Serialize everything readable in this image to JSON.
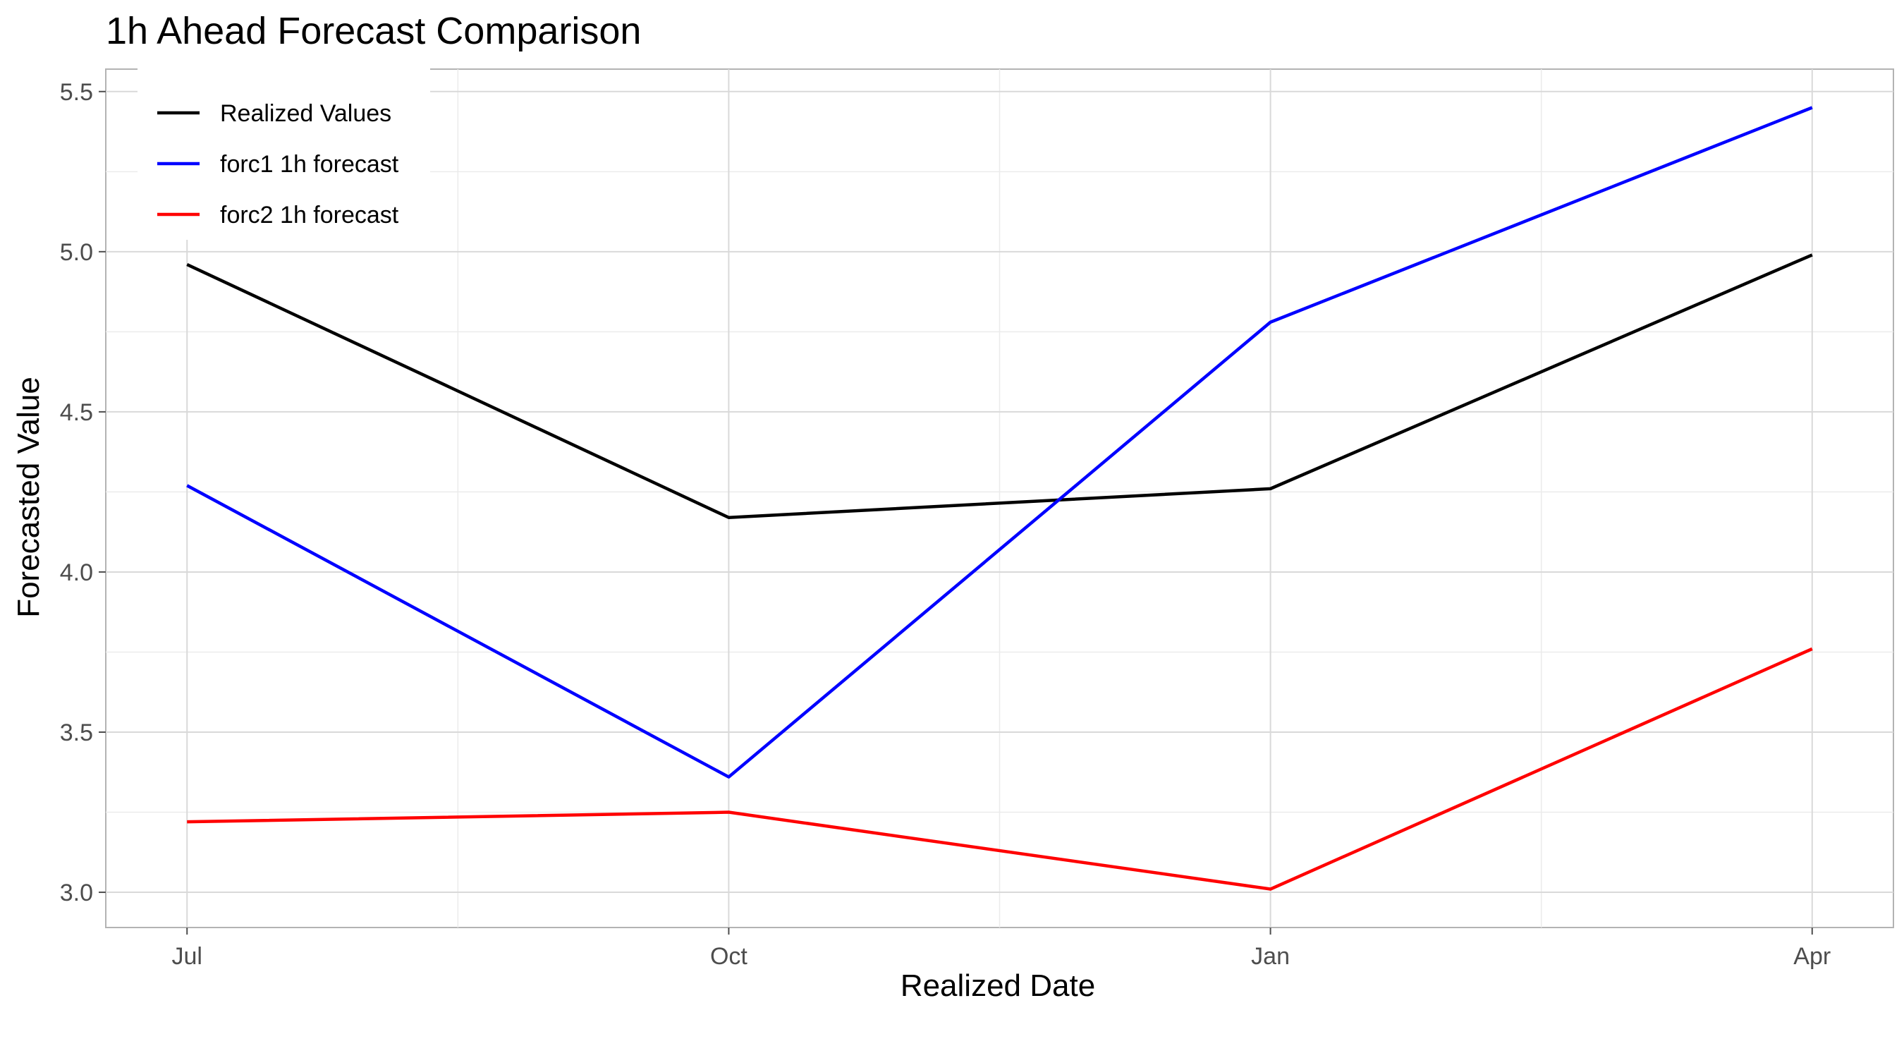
{
  "chart_data": {
    "type": "line",
    "title": "1h Ahead Forecast Comparison",
    "xlabel": "Realized Date",
    "ylabel": "Forecasted Value",
    "x_tick_labels": [
      "Jul",
      "Oct",
      "Jan",
      "Apr"
    ],
    "x_index_range": [
      -0.15,
      3.15
    ],
    "y_ticks": [
      "3.0",
      "3.5",
      "4.0",
      "4.5",
      "5.0",
      "5.5"
    ],
    "ylim": [
      2.89,
      5.57
    ],
    "grid": true,
    "legend_position": "top-left",
    "series": [
      {
        "name": "Realized Values",
        "color": "#000000",
        "x": [
          "Jul",
          "Oct",
          "Jan",
          "Apr"
        ],
        "values": [
          4.96,
          4.17,
          4.26,
          4.99
        ]
      },
      {
        "name": "forc1 1h forecast",
        "color": "#0000ff",
        "x": [
          "Jul",
          "Oct",
          "Jan",
          "Apr"
        ],
        "values": [
          4.27,
          3.36,
          4.78,
          5.45
        ]
      },
      {
        "name": "forc2 1h forecast",
        "color": "#ff0000",
        "x": [
          "Jul",
          "Oct",
          "Jan",
          "Apr"
        ],
        "values": [
          3.22,
          3.25,
          3.01,
          3.76
        ]
      }
    ]
  }
}
